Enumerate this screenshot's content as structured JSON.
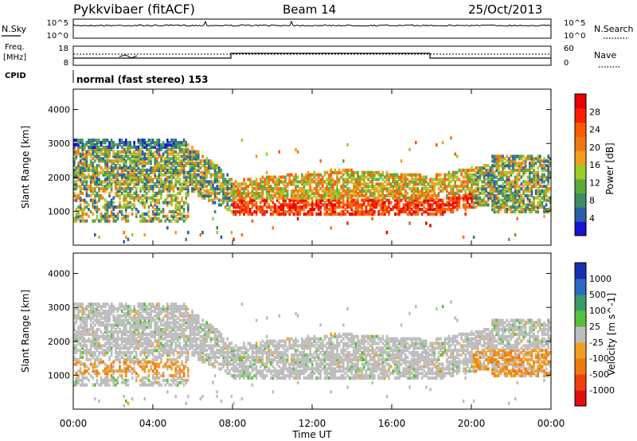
{
  "header": {
    "title": "Pykkvibaer (fitACF)",
    "beam": "Beam 14",
    "date": "25/Oct/2013"
  },
  "nsky_panel": {
    "label_left": "N.Sky",
    "label_right": "N.Search",
    "tick_top_left": "10^5",
    "tick_bottom_left": "10^0",
    "tick_top_right": "10^5",
    "tick_bottom_right": "10^0"
  },
  "freq_panel": {
    "label_left_1": "Freq.",
    "label_left_2": "[MHz]",
    "label_right": "Nave",
    "tick_top_left": "18",
    "tick_bottom_left": "8",
    "tick_top_right": "60",
    "tick_bottom_right": "0"
  },
  "cpid": {
    "label": "CPID",
    "program": "normal (fast stereo) 153"
  },
  "colors": {
    "power": [
      "#1414d2",
      "#2a5ea8",
      "#3c8c66",
      "#5aaa3c",
      "#9ccc28",
      "#f0a01e",
      "#f07814",
      "#ff5a00",
      "#ff1e00",
      "#e60000"
    ],
    "velocity": [
      "#1a2fb0",
      "#2a6ac0",
      "#3a9a6a",
      "#56c23a",
      "#bdbdbd",
      "#f0a020",
      "#f07a10",
      "#f04010",
      "#e01010"
    ]
  },
  "chart_data": [
    {
      "type": "heatmap",
      "name": "power",
      "ylabel": "Slant Range [km]",
      "ylim": [
        0,
        4600
      ],
      "yticks": [
        "1000",
        "2000",
        "3000",
        "4000"
      ],
      "colorbar": {
        "label": "Power [dB]",
        "ticks": [
          "4",
          "8",
          "12",
          "16",
          "20",
          "24",
          "28"
        ]
      }
    },
    {
      "type": "heatmap",
      "name": "velocity",
      "ylabel": "Slant Range [km]",
      "ylim": [
        0,
        4600
      ],
      "yticks": [
        "1000",
        "2000",
        "3000",
        "4000"
      ],
      "colorbar": {
        "label": "Velocity [m s^-1]",
        "ticks": [
          "1000",
          "500",
          "100",
          "25",
          "-25",
          "-100",
          "-500",
          "-1000"
        ]
      }
    }
  ],
  "xaxis": {
    "label": "Time UT",
    "ticks": [
      "00:00",
      "04:00",
      "08:00",
      "12:00",
      "16:00",
      "20:00",
      "00:00"
    ]
  }
}
